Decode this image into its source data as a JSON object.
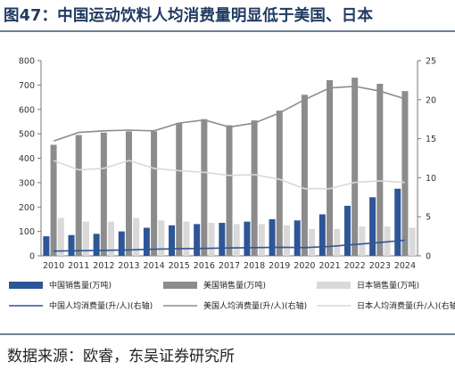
{
  "title": "图47：中国运动饮料人均消费量明显低于美国、日本",
  "source": "数据来源：欧睿，东吴证券研究所",
  "colors": {
    "china": "#2e5597",
    "us": "#8c8c8c",
    "japan": "#d9d9d9",
    "title": "#1f3a60"
  },
  "chart_data": {
    "type": "bar",
    "categories": [
      "2010",
      "2011",
      "2012",
      "2013",
      "2014",
      "2015",
      "2016",
      "2017",
      "2018",
      "2019",
      "2020",
      "2021",
      "2022",
      "2023",
      "2024"
    ],
    "left_axis": {
      "ticks": [
        "0",
        "100",
        "200",
        "300",
        "400",
        "500",
        "600",
        "700",
        "800"
      ],
      "ylim": [
        0,
        800
      ]
    },
    "right_axis": {
      "ticks": [
        "0",
        "5",
        "10",
        "15",
        "20",
        "25"
      ],
      "ylim": [
        0,
        25
      ]
    },
    "series": [
      {
        "name": "中国销售量(万吨)",
        "kind": "bar",
        "axis": "left",
        "color": "#2e5597",
        "values": [
          80,
          85,
          90,
          100,
          115,
          125,
          130,
          135,
          140,
          150,
          145,
          170,
          205,
          240,
          275
        ]
      },
      {
        "name": "美国销售量(万吨)",
        "kind": "bar",
        "axis": "left",
        "color": "#8c8c8c",
        "values": [
          455,
          495,
          505,
          510,
          510,
          545,
          560,
          535,
          555,
          595,
          660,
          720,
          730,
          705,
          675
        ]
      },
      {
        "name": "日本销售量(万吨)",
        "kind": "bar",
        "axis": "left",
        "color": "#d9d9d9",
        "values": [
          155,
          140,
          140,
          155,
          145,
          140,
          135,
          130,
          130,
          125,
          110,
          110,
          120,
          120,
          115
        ]
      },
      {
        "name": "中国人均消费量(升/人)(右轴)",
        "kind": "line",
        "axis": "right",
        "color": "#2e5597",
        "values": [
          0.6,
          0.65,
          0.7,
          0.75,
          0.85,
          0.9,
          0.95,
          1.0,
          1.05,
          1.1,
          1.05,
          1.2,
          1.45,
          1.7,
          2.0
        ]
      },
      {
        "name": "美国人均消费量(升/人)(右轴)",
        "kind": "line",
        "axis": "right",
        "color": "#8c8c8c",
        "values": [
          14.7,
          15.8,
          16.0,
          16.1,
          16.0,
          17.0,
          17.4,
          16.5,
          17.0,
          18.3,
          20.0,
          21.5,
          21.7,
          21.1,
          20.1
        ]
      },
      {
        "name": "日本人均消费量(升/人)(右轴)",
        "kind": "line",
        "axis": "right",
        "color": "#d9d9d9",
        "values": [
          12.2,
          11.0,
          11.2,
          12.2,
          11.2,
          10.9,
          10.7,
          10.3,
          10.4,
          9.8,
          8.6,
          8.6,
          9.4,
          9.6,
          9.4
        ]
      }
    ],
    "legend_position": "bottom",
    "grid": false
  }
}
